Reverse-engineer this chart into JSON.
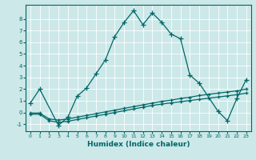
{
  "xlabel": "Humidex (Indice chaleur)",
  "background_color": "#cce8e8",
  "grid_color": "#ffffff",
  "line_color": "#006666",
  "xlim": [
    -0.5,
    23.5
  ],
  "ylim": [
    -1.6,
    9.2
  ],
  "yticks": [
    -1,
    0,
    1,
    2,
    3,
    4,
    5,
    6,
    7,
    8
  ],
  "xticks": [
    0,
    1,
    2,
    3,
    4,
    5,
    6,
    7,
    8,
    9,
    10,
    11,
    12,
    13,
    14,
    15,
    16,
    17,
    18,
    19,
    20,
    21,
    22,
    23
  ],
  "curve1_x": [
    0,
    1,
    3,
    4,
    5,
    6,
    7,
    8,
    9,
    10,
    11,
    12,
    13,
    14,
    15,
    16,
    17,
    18,
    20,
    21,
    22,
    23
  ],
  "curve1_y": [
    0.8,
    2.0,
    -1.1,
    -0.4,
    1.4,
    2.1,
    3.3,
    4.5,
    6.5,
    7.7,
    8.7,
    7.5,
    8.5,
    7.7,
    6.7,
    6.3,
    3.2,
    2.5,
    0.1,
    -0.7,
    1.2,
    2.8
  ],
  "curve2_x": [
    0,
    1,
    2,
    3,
    4,
    5,
    6,
    7,
    8,
    9,
    10,
    11,
    12,
    13,
    14,
    15,
    16,
    17,
    18,
    19,
    20,
    21,
    22,
    23
  ],
  "curve2_y": [
    -0.05,
    -0.05,
    -0.55,
    -0.65,
    -0.55,
    -0.4,
    -0.25,
    -0.1,
    0.05,
    0.2,
    0.35,
    0.5,
    0.65,
    0.8,
    0.95,
    1.05,
    1.2,
    1.3,
    1.45,
    1.55,
    1.65,
    1.75,
    1.85,
    2.0
  ],
  "curve3_x": [
    0,
    1,
    2,
    3,
    4,
    5,
    6,
    7,
    8,
    9,
    10,
    11,
    12,
    13,
    14,
    15,
    16,
    17,
    18,
    19,
    20,
    21,
    22,
    23
  ],
  "curve3_y": [
    -0.15,
    -0.15,
    -0.7,
    -0.85,
    -0.75,
    -0.6,
    -0.45,
    -0.3,
    -0.15,
    -0.0,
    0.15,
    0.3,
    0.45,
    0.6,
    0.72,
    0.82,
    0.92,
    1.02,
    1.12,
    1.22,
    1.32,
    1.42,
    1.52,
    1.65
  ]
}
